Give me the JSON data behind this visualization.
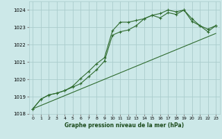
{
  "xlabel": "Graphe pression niveau de la mer (hPa)",
  "ylim": [
    1018,
    1024.5
  ],
  "xlim": [
    -0.5,
    23.5
  ],
  "yticks": [
    1018,
    1019,
    1020,
    1021,
    1022,
    1023,
    1024
  ],
  "xticks": [
    0,
    1,
    2,
    3,
    4,
    5,
    6,
    7,
    8,
    9,
    10,
    11,
    12,
    13,
    14,
    15,
    16,
    17,
    18,
    19,
    20,
    21,
    22,
    23
  ],
  "bg_color": "#cce8e8",
  "grid_color": "#aacccc",
  "line_color": "#2d6a2d",
  "series1_x": [
    0,
    1,
    2,
    3,
    4,
    5,
    6,
    7,
    8,
    9,
    10,
    11,
    12,
    13,
    14,
    15,
    16,
    17,
    18,
    19,
    20,
    21,
    22,
    23
  ],
  "series1_y": [
    1018.3,
    1018.85,
    1019.1,
    1019.2,
    1019.35,
    1019.55,
    1019.75,
    1020.15,
    1020.55,
    1021.05,
    1022.55,
    1022.75,
    1022.85,
    1023.1,
    1023.5,
    1023.7,
    1023.55,
    1023.85,
    1023.75,
    1024.0,
    1023.35,
    1023.1,
    1022.75,
    1023.1
  ],
  "series2_x": [
    0,
    1,
    2,
    3,
    4,
    5,
    6,
    7,
    8,
    9,
    10,
    11,
    12,
    13,
    14,
    15,
    16,
    17,
    18,
    19,
    20,
    21,
    22,
    23
  ],
  "series2_y": [
    1018.3,
    1018.85,
    1019.1,
    1019.2,
    1019.35,
    1019.6,
    1020.05,
    1020.45,
    1020.9,
    1021.25,
    1022.8,
    1023.3,
    1023.3,
    1023.4,
    1023.5,
    1023.7,
    1023.8,
    1024.0,
    1023.9,
    1024.0,
    1023.5,
    1023.1,
    1022.9,
    1023.1
  ],
  "series3_x": [
    0,
    23
  ],
  "series3_y": [
    1018.3,
    1022.65
  ]
}
